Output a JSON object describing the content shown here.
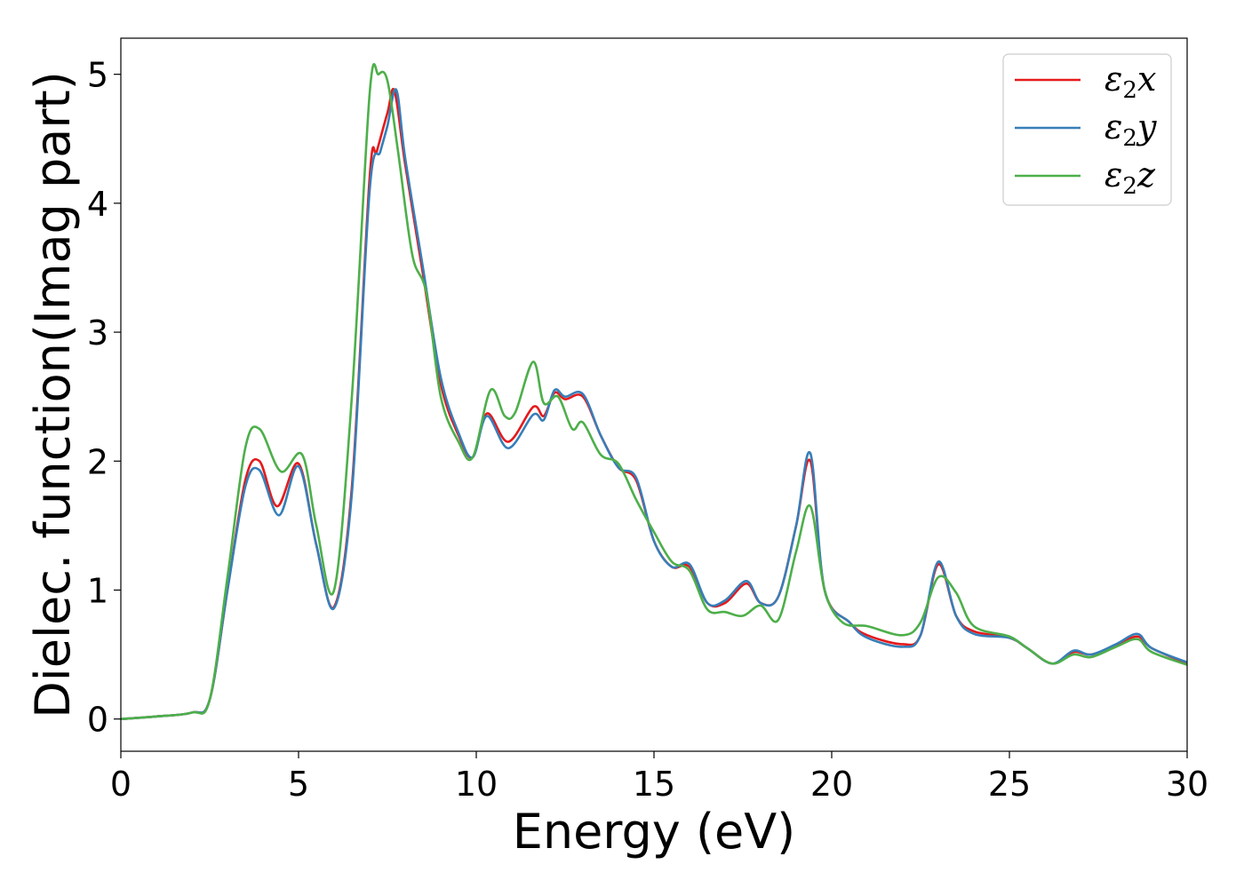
{
  "chart_data": {
    "type": "line",
    "title": "",
    "xlabel": "Energy (eV)",
    "ylabel": "Dielec. function(Imag part)",
    "xlim": [
      0,
      30
    ],
    "ylim": [
      -0.25,
      5.28
    ],
    "xticks": [
      0,
      5,
      10,
      15,
      20,
      25,
      30
    ],
    "yticks": [
      0,
      1,
      2,
      3,
      4,
      5
    ],
    "grid": false,
    "legend_position": "top-right",
    "series": [
      {
        "name": "ε₂x",
        "legend_base": "ε",
        "legend_sub": "2",
        "legend_axis": "x",
        "color": "#e41a1c",
        "x": [
          0,
          1,
          2,
          2.5,
          3,
          3.5,
          3.9,
          4.4,
          5.0,
          5.5,
          6.0,
          6.5,
          7.0,
          7.2,
          7.5,
          7.7,
          8.0,
          8.5,
          9.0,
          9.5,
          9.9,
          10.3,
          10.9,
          11.6,
          11.9,
          12.2,
          12.5,
          13.0,
          13.5,
          14.0,
          14.5,
          15.0,
          15.5,
          16.0,
          16.5,
          17.0,
          17.6,
          18.0,
          18.5,
          19.0,
          19.4,
          19.8,
          20.5,
          21.0,
          22.0,
          22.5,
          23.0,
          23.5,
          24.0,
          25.0,
          25.5,
          26.2,
          26.8,
          27.3,
          28.0,
          28.6,
          29.0,
          30.0
        ],
        "y": [
          0,
          0.02,
          0.05,
          0.15,
          1.0,
          1.85,
          2.0,
          1.65,
          1.98,
          1.35,
          0.87,
          1.8,
          4.2,
          4.4,
          4.7,
          4.87,
          4.3,
          3.45,
          2.6,
          2.2,
          2.03,
          2.37,
          2.15,
          2.42,
          2.35,
          2.53,
          2.48,
          2.5,
          2.2,
          1.95,
          1.85,
          1.38,
          1.18,
          1.18,
          0.9,
          0.9,
          1.05,
          0.9,
          0.95,
          1.5,
          2.0,
          1.0,
          0.75,
          0.65,
          0.58,
          0.65,
          1.2,
          0.8,
          0.68,
          0.63,
          0.55,
          0.43,
          0.52,
          0.5,
          0.57,
          0.64,
          0.55,
          0.43
        ]
      },
      {
        "name": "ε₂y",
        "legend_base": "ε",
        "legend_sub": "2",
        "legend_axis": "y",
        "color": "#377eb8",
        "x": [
          0,
          1,
          2,
          2.5,
          3,
          3.5,
          3.9,
          4.45,
          5.0,
          5.5,
          6.0,
          6.5,
          7.0,
          7.3,
          7.5,
          7.75,
          8.0,
          8.5,
          9.0,
          9.5,
          9.9,
          10.3,
          10.9,
          11.6,
          11.9,
          12.2,
          12.5,
          13.0,
          13.5,
          14.0,
          14.5,
          15.0,
          15.5,
          16.0,
          16.5,
          17.0,
          17.6,
          18.0,
          18.5,
          19.0,
          19.4,
          19.8,
          20.5,
          21.0,
          22.0,
          22.5,
          23.0,
          23.5,
          24.0,
          25.0,
          25.5,
          26.2,
          26.8,
          27.3,
          28.0,
          28.6,
          29.0,
          30.0
        ],
        "y": [
          0,
          0.02,
          0.05,
          0.15,
          1.0,
          1.8,
          1.93,
          1.58,
          1.96,
          1.35,
          0.86,
          1.75,
          4.1,
          4.4,
          4.6,
          4.88,
          4.35,
          3.5,
          2.65,
          2.22,
          2.03,
          2.35,
          2.1,
          2.36,
          2.32,
          2.55,
          2.5,
          2.52,
          2.2,
          1.95,
          1.87,
          1.38,
          1.18,
          1.2,
          0.9,
          0.92,
          1.07,
          0.9,
          0.95,
          1.5,
          2.06,
          1.0,
          0.75,
          0.63,
          0.56,
          0.65,
          1.22,
          0.8,
          0.66,
          0.63,
          0.55,
          0.43,
          0.53,
          0.5,
          0.58,
          0.66,
          0.55,
          0.44
        ]
      },
      {
        "name": "ε₂z",
        "legend_base": "ε",
        "legend_sub": "2",
        "legend_axis": "z",
        "color": "#4daf4a",
        "x": [
          0,
          1,
          2,
          2.5,
          3,
          3.5,
          3.9,
          4.5,
          5.1,
          5.5,
          6.0,
          6.5,
          7.0,
          7.25,
          7.5,
          7.8,
          8.2,
          8.6,
          9.0,
          9.5,
          9.9,
          10.4,
          10.8,
          11.1,
          11.6,
          11.9,
          12.3,
          12.7,
          13.0,
          13.5,
          14.0,
          14.5,
          15.0,
          15.5,
          16.0,
          16.5,
          17.0,
          17.5,
          18.0,
          18.5,
          19.0,
          19.4,
          19.8,
          20.3,
          21.0,
          22.0,
          22.5,
          23.0,
          23.5,
          24.0,
          25.0,
          25.5,
          26.2,
          26.8,
          27.3,
          28.0,
          28.6,
          29.0,
          30.0
        ],
        "y": [
          0,
          0.02,
          0.05,
          0.15,
          1.1,
          2.1,
          2.25,
          1.92,
          2.05,
          1.5,
          1.0,
          2.5,
          4.85,
          5.0,
          4.95,
          4.4,
          3.6,
          3.3,
          2.5,
          2.15,
          2.03,
          2.55,
          2.35,
          2.38,
          2.77,
          2.45,
          2.5,
          2.25,
          2.3,
          2.05,
          1.98,
          1.7,
          1.45,
          1.22,
          1.15,
          0.85,
          0.83,
          0.8,
          0.88,
          0.77,
          1.3,
          1.65,
          1.0,
          0.75,
          0.72,
          0.65,
          0.75,
          1.1,
          0.98,
          0.72,
          0.64,
          0.55,
          0.43,
          0.5,
          0.48,
          0.56,
          0.62,
          0.52,
          0.42
        ]
      }
    ]
  }
}
